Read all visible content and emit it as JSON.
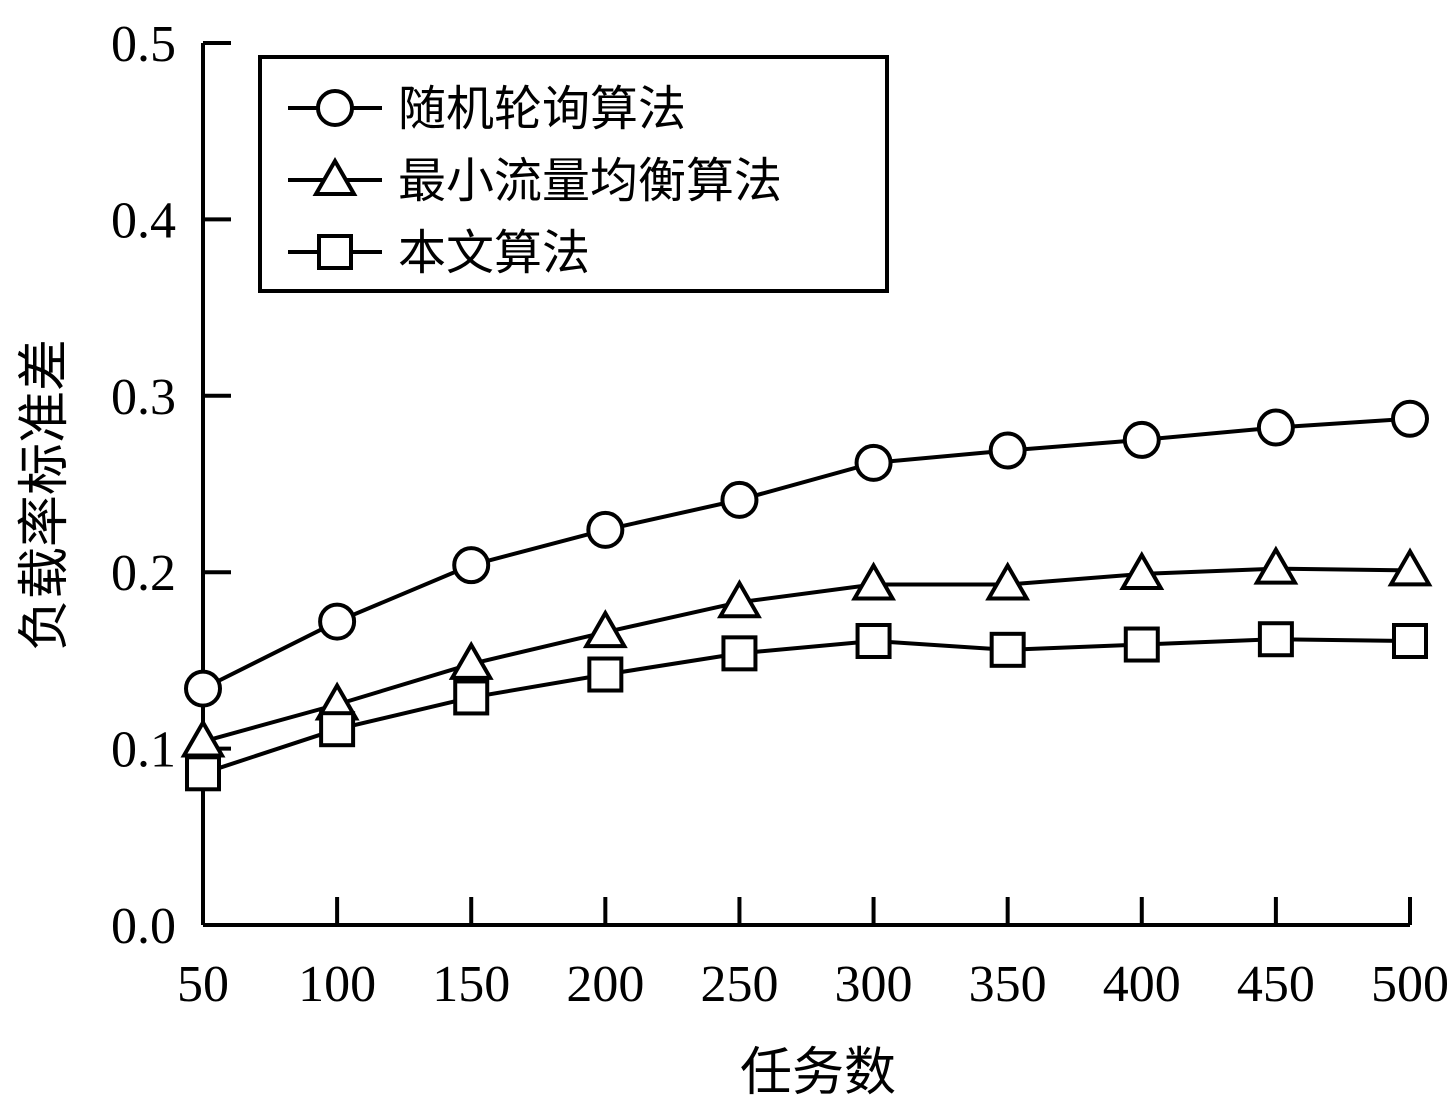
{
  "chart_data": {
    "type": "line",
    "title": "",
    "xlabel": "任务数",
    "ylabel": "负载率标准差",
    "x": [
      50,
      100,
      150,
      200,
      250,
      300,
      350,
      400,
      450,
      500
    ],
    "x_tick_labels": [
      "50",
      "100",
      "150",
      "200",
      "250",
      "300",
      "350",
      "400",
      "450",
      "500"
    ],
    "y_tick_labels": [
      "0.0",
      "0.1",
      "0.2",
      "0.3",
      "0.4",
      "0.5"
    ],
    "ylim": [
      0,
      0.5
    ],
    "xlim": [
      50,
      500
    ],
    "grid": false,
    "legend_position": "top-left",
    "series": [
      {
        "name": "随机轮询算法",
        "marker": "circle",
        "values": [
          0.134,
          0.172,
          0.204,
          0.224,
          0.241,
          0.262,
          0.269,
          0.275,
          0.282,
          0.287
        ]
      },
      {
        "name": "最小流量均衡算法",
        "marker": "triangle",
        "values": [
          0.104,
          0.125,
          0.148,
          0.166,
          0.183,
          0.193,
          0.193,
          0.199,
          0.202,
          0.201
        ]
      },
      {
        "name": "本文算法",
        "marker": "square",
        "values": [
          0.086,
          0.111,
          0.129,
          0.142,
          0.154,
          0.161,
          0.156,
          0.159,
          0.162,
          0.161
        ]
      }
    ],
    "colors": {
      "line": "#000000",
      "marker_fill": "#ffffff",
      "background": "#ffffff"
    }
  }
}
